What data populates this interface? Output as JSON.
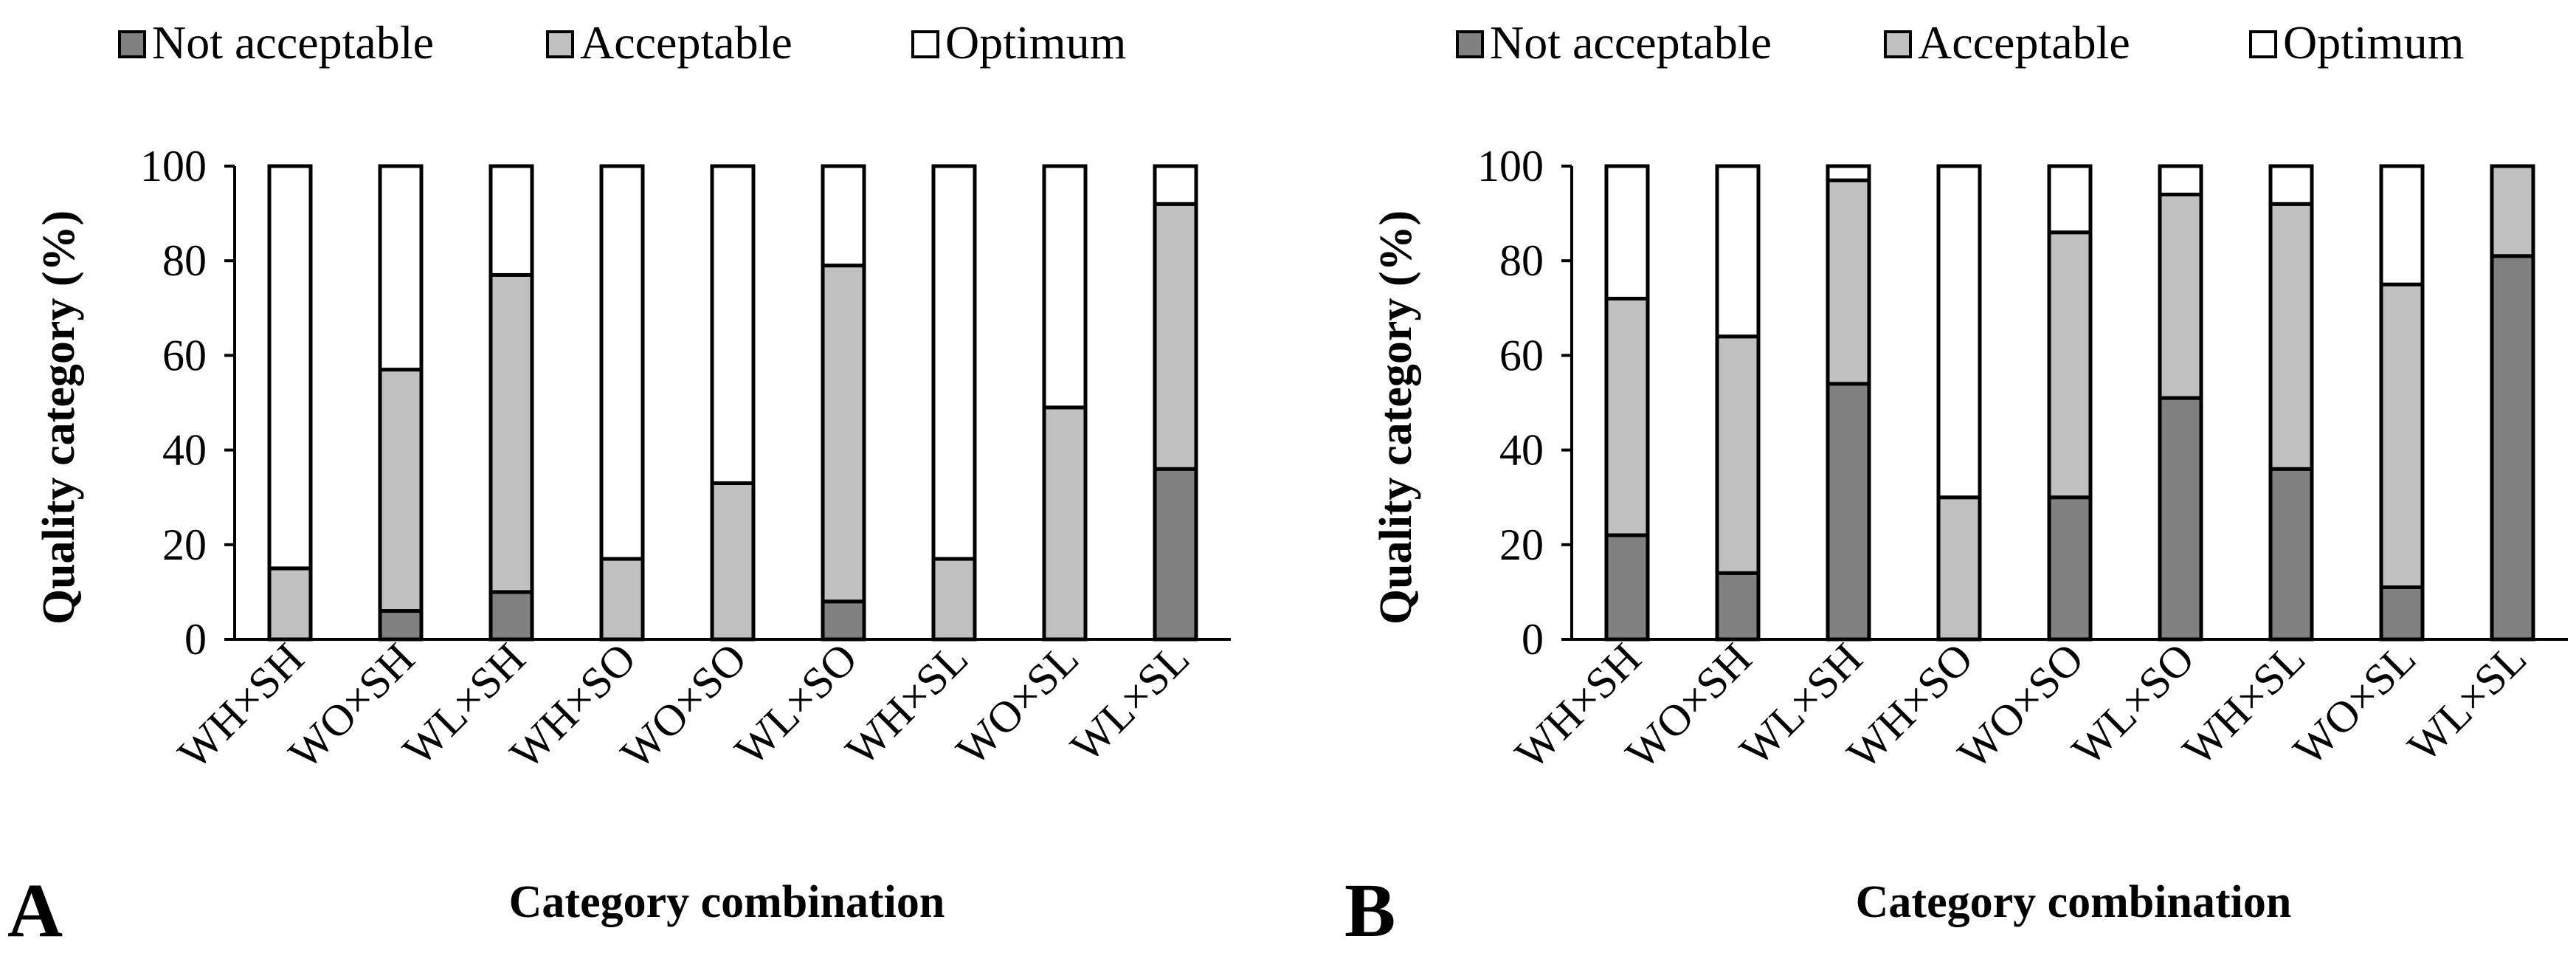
{
  "chart_data": [
    {
      "type": "bar",
      "stacked": true,
      "panel_label": "A",
      "title": "",
      "xlabel": "Category combination",
      "ylabel": "Quality category (%)",
      "ylim": [
        0,
        100
      ],
      "yticks": [
        0,
        20,
        40,
        60,
        80,
        100
      ],
      "legend_position": "top",
      "categories": [
        "WH×SH",
        "WO×SH",
        "WL×SH",
        "WH×SO",
        "WO×SO",
        "WL×SO",
        "WH×SL",
        "WO×SL",
        "WL×SL"
      ],
      "series": [
        {
          "name": "Not acceptable",
          "color": "#808080",
          "values": [
            0,
            6,
            10,
            0,
            0,
            8,
            0,
            0,
            36
          ]
        },
        {
          "name": "Acceptable",
          "color": "#c0c0c0",
          "values": [
            15,
            51,
            67,
            17,
            33,
            71,
            17,
            49,
            56
          ]
        },
        {
          "name": "Optimum",
          "color": "#ffffff",
          "values": [
            85,
            43,
            23,
            83,
            67,
            21,
            83,
            51,
            8
          ]
        }
      ]
    },
    {
      "type": "bar",
      "stacked": true,
      "panel_label": "B",
      "title": "",
      "xlabel": "Category combination",
      "ylabel": "Quality category (%)",
      "ylim": [
        0,
        100
      ],
      "yticks": [
        0,
        20,
        40,
        60,
        80,
        100
      ],
      "legend_position": "top",
      "categories": [
        "WH×SH",
        "WO×SH",
        "WL×SH",
        "WH×SO",
        "WO×SO",
        "WL×SO",
        "WH×SL",
        "WO×SL",
        "WL×SL"
      ],
      "series": [
        {
          "name": "Not acceptable",
          "color": "#808080",
          "values": [
            22,
            14,
            54,
            0,
            30,
            51,
            36,
            11,
            81
          ]
        },
        {
          "name": "Acceptable",
          "color": "#c0c0c0",
          "values": [
            50,
            50,
            43,
            30,
            56,
            43,
            56,
            64,
            19
          ]
        },
        {
          "name": "Optimum",
          "color": "#ffffff",
          "values": [
            28,
            36,
            3,
            70,
            14,
            6,
            8,
            25,
            0
          ]
        }
      ]
    }
  ]
}
